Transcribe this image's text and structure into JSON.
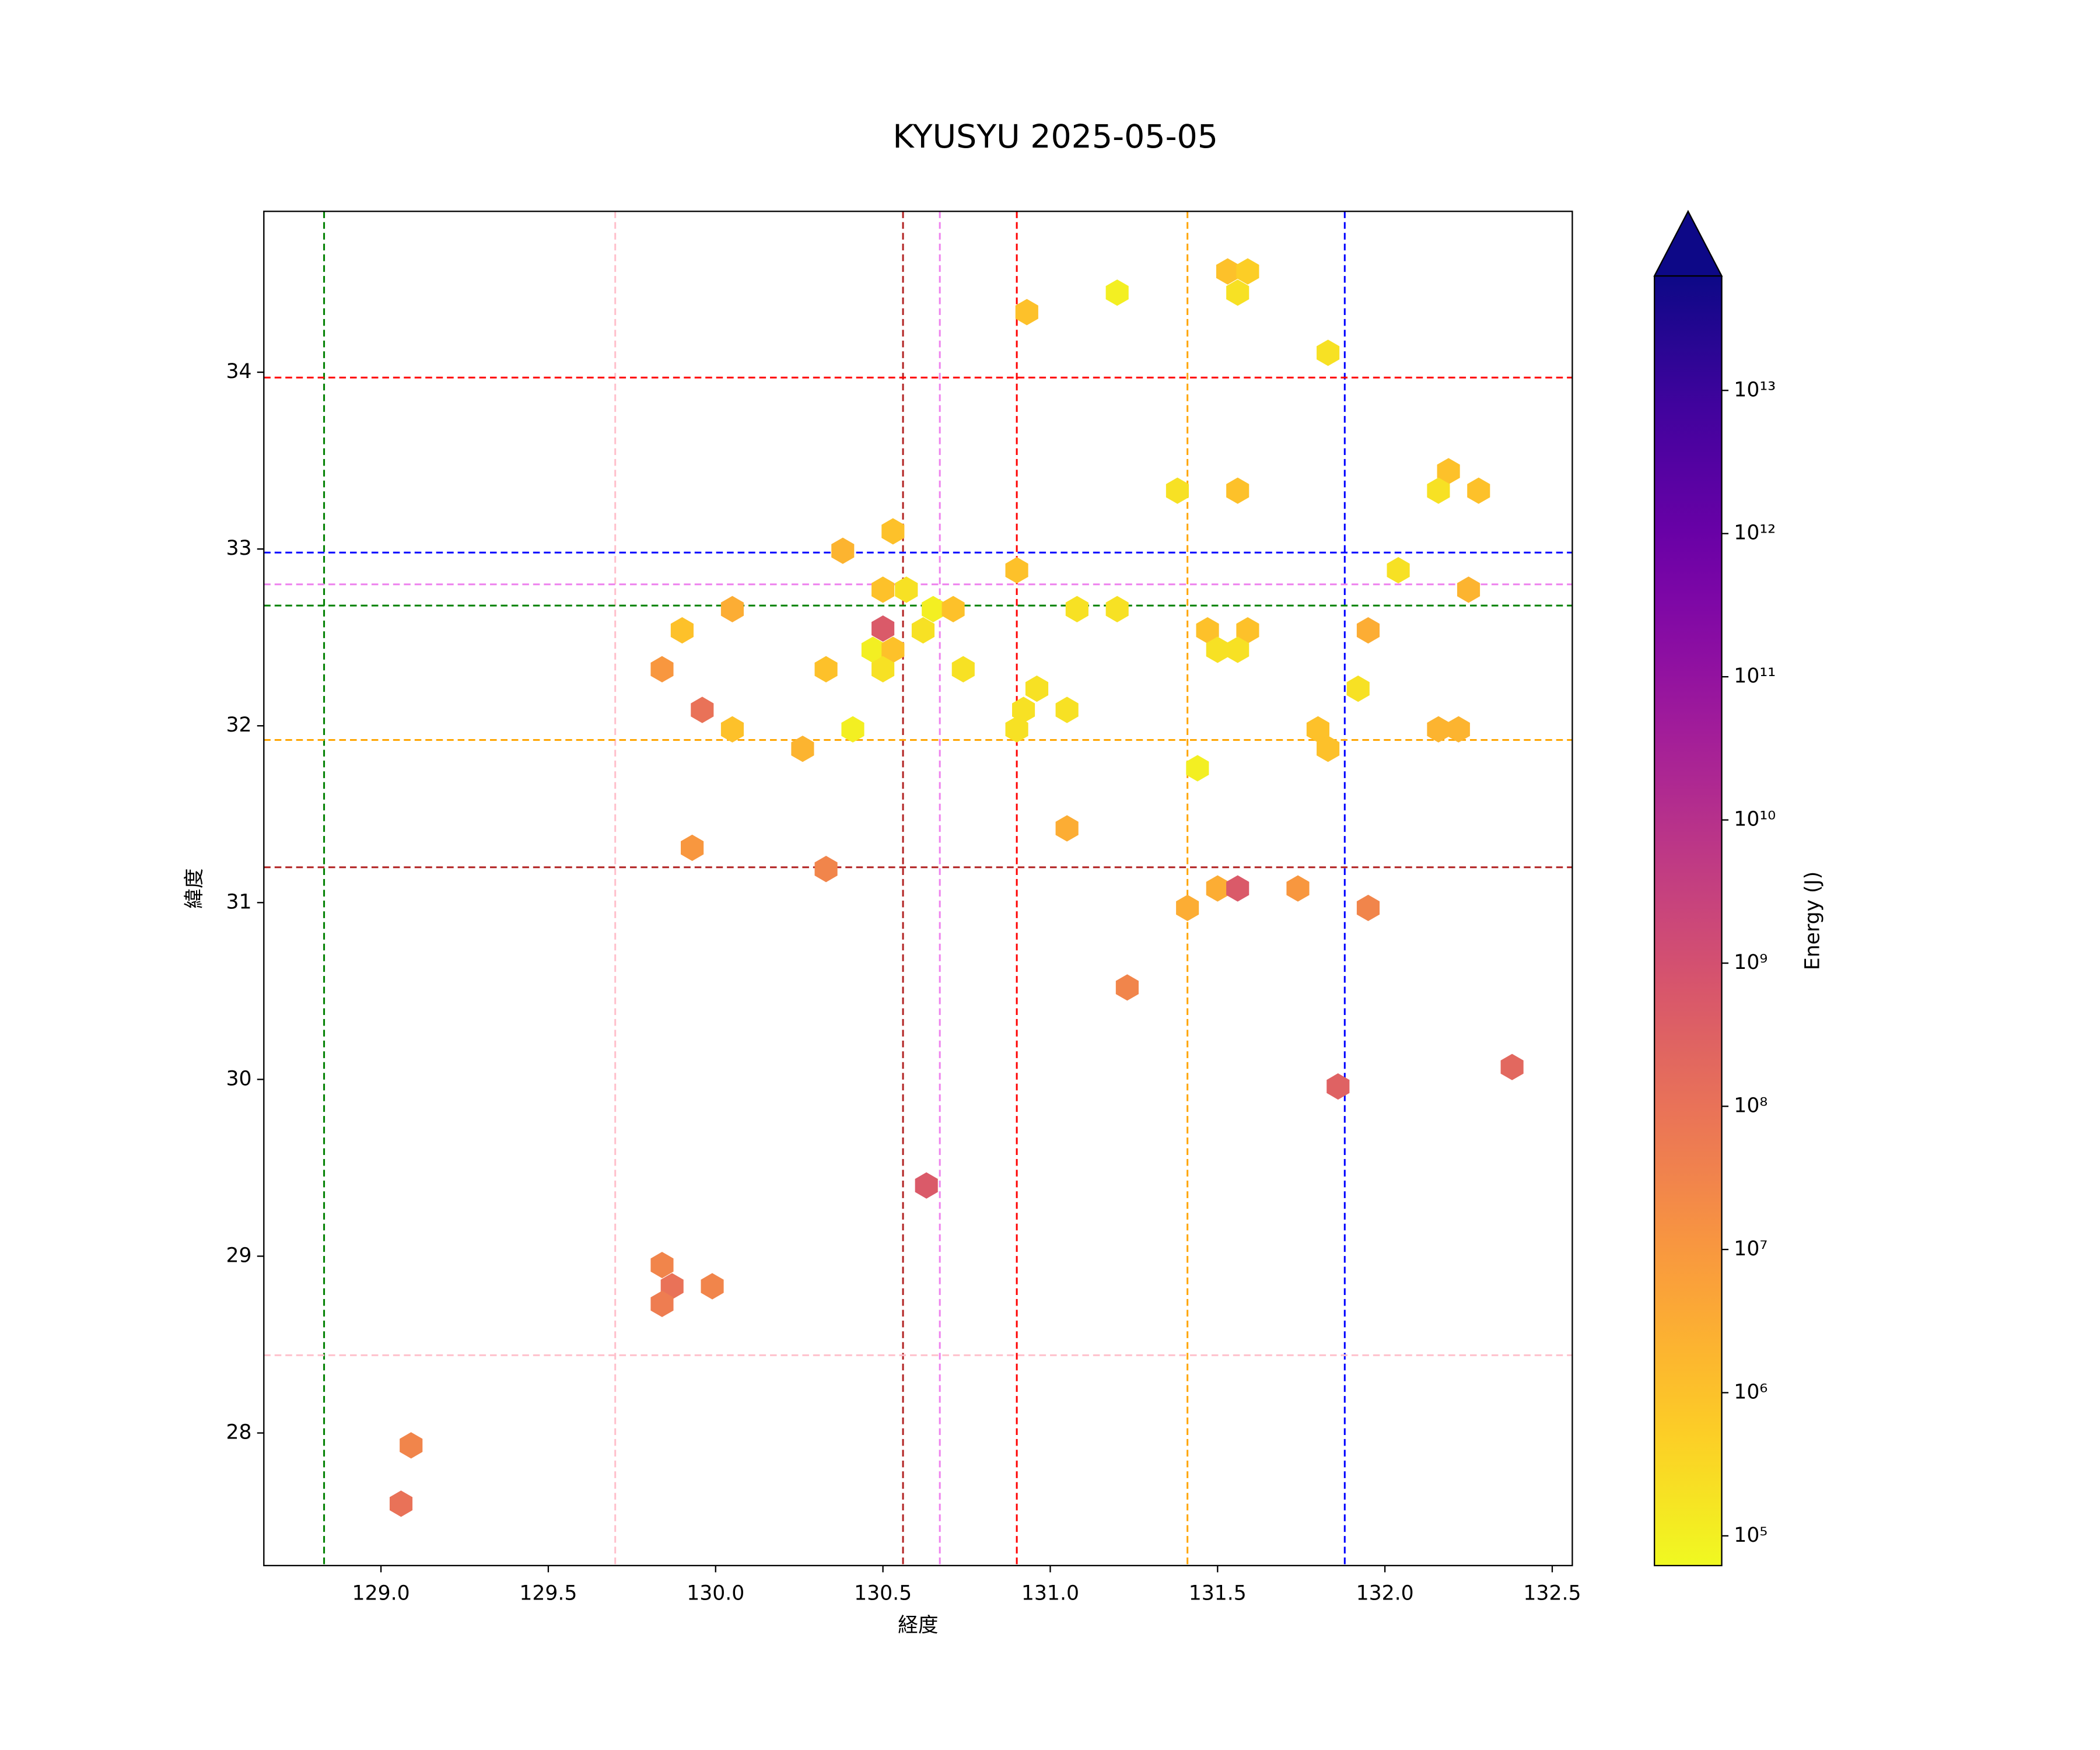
{
  "chart_data": {
    "type": "hexbin",
    "title": "KYUSYU 2025-05-05",
    "xlabel": "経度",
    "ylabel": "緯度",
    "xlim": [
      128.65,
      132.56
    ],
    "ylim": [
      27.25,
      34.91
    ],
    "xticks": [
      {
        "value": 129,
        "label": "129.0"
      },
      129.5,
      {
        "value": 130,
        "label": "130.0"
      },
      130.5,
      {
        "value": 131,
        "label": "131.0"
      },
      131.5,
      {
        "value": 132,
        "label": "132.0"
      },
      132.5
    ],
    "yticks": [
      28,
      29,
      30,
      31,
      32,
      33,
      34
    ],
    "x": [
      131.53,
      131.59,
      131.56,
      131.2,
      130.93,
      131.83,
      131.38,
      131.56,
      132.19,
      132.16,
      132.28,
      130.53,
      130.38,
      130.9,
      132.04,
      132.25,
      130.5,
      130.57,
      130.05,
      130.65,
      130.71,
      131.08,
      131.2,
      129.9,
      130.5,
      130.62,
      131.47,
      131.59,
      131.95,
      130.47,
      130.53,
      131.5,
      131.56,
      129.84,
      130.33,
      130.5,
      130.74,
      129.96,
      130.92,
      130.96,
      131.05,
      131.92,
      130.05,
      130.41,
      130.9,
      131.8,
      132.16,
      132.22,
      130.26,
      131.83,
      131.44,
      129.93,
      131.05,
      130.33,
      131.5,
      131.56,
      131.74,
      131.41,
      131.95,
      131.23,
      131.86,
      132.38,
      130.63,
      129.84,
      129.87,
      129.99,
      129.84,
      129.09,
      129.06
    ],
    "y": [
      34.57,
      34.57,
      34.45,
      34.45,
      34.34,
      34.11,
      33.33,
      33.33,
      33.44,
      33.33,
      33.33,
      33.1,
      32.99,
      32.88,
      32.88,
      32.77,
      32.77,
      32.77,
      32.66,
      32.66,
      32.66,
      32.66,
      32.66,
      32.54,
      32.55,
      32.54,
      32.54,
      32.54,
      32.54,
      32.43,
      32.43,
      32.43,
      32.43,
      32.32,
      32.32,
      32.32,
      32.32,
      32.09,
      32.09,
      32.21,
      32.09,
      32.21,
      31.98,
      31.98,
      31.98,
      31.98,
      31.98,
      31.98,
      31.87,
      31.87,
      31.76,
      31.31,
      31.42,
      31.19,
      31.08,
      31.08,
      31.08,
      30.97,
      30.97,
      30.52,
      29.96,
      30.07,
      29.4,
      28.95,
      28.83,
      28.83,
      28.73,
      27.93,
      27.6
    ],
    "values": [
      1000000.0,
      500000.0,
      200000.0,
      100000.0,
      1000000.0,
      200000.0,
      200000.0,
      1000000.0,
      1000000.0,
      200000.0,
      1000000.0,
      1000000.0,
      2000000.0,
      1000000.0,
      200000.0,
      2000000.0,
      1000000.0,
      200000.0,
      3000000.0,
      100000.0,
      1000000.0,
      200000.0,
      200000.0,
      1000000.0,
      500000000.0,
      200000.0,
      1000000.0,
      1000000.0,
      3000000.0,
      100000.0,
      1000000.0,
      200000.0,
      200000.0,
      10000000.0,
      1000000.0,
      200000.0,
      200000.0,
      100000000.0,
      200000.0,
      200000.0,
      200000.0,
      200000.0,
      1000000.0,
      100000.0,
      200000.0,
      1000000.0,
      2000000.0,
      2000000.0,
      2000000.0,
      1000000.0,
      100000.0,
      10000000.0,
      3000000.0,
      30000000.0,
      3000000.0,
      500000000.0,
      10000000.0,
      3000000.0,
      30000000.0,
      30000000.0,
      300000000.0,
      200000000.0,
      500000000.0,
      30000000.0,
      100000000.0,
      30000000.0,
      50000000.0,
      30000000.0,
      100000000.0
    ],
    "vlines": [
      {
        "x": 128.83,
        "color": "green"
      },
      {
        "x": 129.7,
        "color": "pink"
      },
      {
        "x": 130.56,
        "color": "firebrick"
      },
      {
        "x": 130.67,
        "color": "violet"
      },
      {
        "x": 130.9,
        "color": "red"
      },
      {
        "x": 131.41,
        "color": "orange"
      },
      {
        "x": 131.88,
        "color": "blue"
      }
    ],
    "hlines": [
      {
        "y": 33.97,
        "color": "red"
      },
      {
        "y": 32.98,
        "color": "blue"
      },
      {
        "y": 32.8,
        "color": "violet"
      },
      {
        "y": 32.68,
        "color": "green"
      },
      {
        "y": 31.92,
        "color": "orange"
      },
      {
        "y": 31.2,
        "color": "firebrick"
      },
      {
        "y": 28.44,
        "color": "pink"
      }
    ],
    "colorbar": {
      "label": "Energy (J)",
      "colormap": "plasma_r",
      "log": true,
      "extend": "max",
      "lim": [
        62000,
        63000000000000
      ],
      "ticks": [
        {
          "value": 100000.0,
          "label": "10⁵"
        },
        {
          "value": 1000000.0,
          "label": "10⁶"
        },
        {
          "value": 10000000.0,
          "label": "10⁷"
        },
        {
          "value": 100000000.0,
          "label": "10⁸"
        },
        {
          "value": 1000000000.0,
          "label": "10⁹"
        },
        {
          "value": 10000000000.0,
          "label": "10¹⁰"
        },
        {
          "value": 100000000000.0,
          "label": "10¹¹"
        },
        {
          "value": 1000000000000.0,
          "label": "10¹²"
        },
        {
          "value": 10000000000000.0,
          "label": "10¹³"
        }
      ]
    }
  }
}
